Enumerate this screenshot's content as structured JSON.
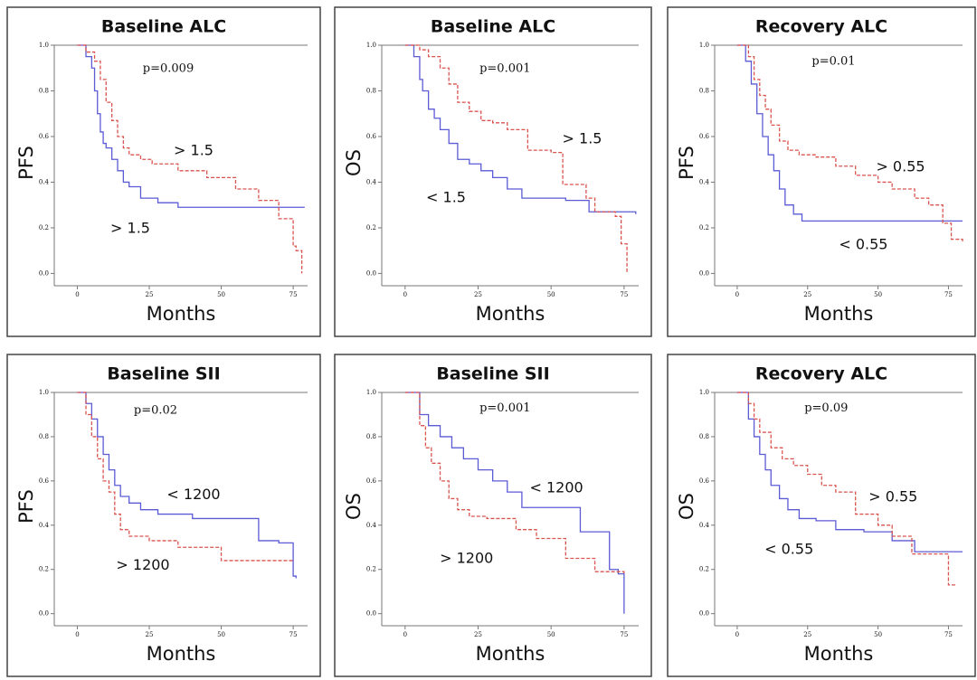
{
  "chart_data": [
    {
      "type": "line",
      "step": true,
      "title": "Baseline ALC",
      "ylabel": "PFS",
      "xlabel": "Months",
      "xlim": [
        -8,
        80
      ],
      "xticks": [
        0,
        25,
        50,
        75
      ],
      "ylim": [
        -0.03,
        1.0
      ],
      "yticks": [
        {
          "value": 0,
          "label": "0.0"
        },
        {
          "value": 0.2,
          "label": "0.2"
        },
        {
          "value": 0.4,
          "label": "0.4"
        },
        {
          "value": 0.6,
          "label": "0.6"
        },
        {
          "value": 0.8,
          "label": "0.8"
        },
        {
          "value": 1,
          "label": "1.0"
        }
      ],
      "annotations": [
        "p=0.009",
        "> 1.5",
        "> 1.5"
      ],
      "series": [
        {
          "color": "#5b5bd6",
          "dash": false,
          "x": [
            0,
            3,
            5,
            6,
            7,
            8,
            9,
            10,
            12,
            14,
            16,
            18,
            22,
            28,
            35,
            50,
            62,
            79
          ],
          "y": [
            1.0,
            0.95,
            0.9,
            0.8,
            0.7,
            0.62,
            0.57,
            0.55,
            0.5,
            0.45,
            0.4,
            0.38,
            0.33,
            0.31,
            0.29,
            0.29,
            0.29,
            0.29
          ]
        },
        {
          "color": "#d9534f",
          "dash": true,
          "x": [
            0,
            3,
            6,
            8,
            10,
            12,
            14,
            16,
            18,
            22,
            26,
            30,
            35,
            45,
            55,
            63,
            70,
            75,
            76,
            78
          ],
          "y": [
            1.0,
            0.97,
            0.93,
            0.85,
            0.75,
            0.67,
            0.6,
            0.55,
            0.52,
            0.5,
            0.48,
            0.48,
            0.45,
            0.42,
            0.37,
            0.32,
            0.24,
            0.12,
            0.1,
            0.0
          ]
        }
      ]
    },
    {
      "type": "line",
      "step": true,
      "title": "Baseline ALC",
      "ylabel": "OS",
      "xlabel": "Months",
      "xlim": [
        -8,
        80
      ],
      "xticks": [
        0,
        25,
        50,
        75
      ],
      "ylim": [
        -0.03,
        1.0
      ],
      "yticks": [
        {
          "value": 0,
          "label": "0.0"
        },
        {
          "value": 0.2,
          "label": "0.2"
        },
        {
          "value": 0.4,
          "label": "0.4"
        },
        {
          "value": 0.6,
          "label": "0.6"
        },
        {
          "value": 0.8,
          "label": "0.8"
        },
        {
          "value": 1,
          "label": "1.0"
        }
      ],
      "annotations": [
        "p=0.001",
        "> 1.5",
        "< 1.5"
      ],
      "series": [
        {
          "color": "#5b5bd6",
          "dash": false,
          "x": [
            0,
            3,
            5,
            6,
            8,
            10,
            12,
            15,
            18,
            22,
            26,
            30,
            35,
            40,
            48,
            55,
            63,
            79
          ],
          "y": [
            1.0,
            0.95,
            0.85,
            0.8,
            0.72,
            0.68,
            0.63,
            0.57,
            0.5,
            0.48,
            0.45,
            0.42,
            0.37,
            0.33,
            0.33,
            0.32,
            0.27,
            0.26
          ]
        },
        {
          "color": "#d9534f",
          "dash": true,
          "x": [
            0,
            5,
            8,
            12,
            15,
            18,
            22,
            26,
            30,
            35,
            42,
            50,
            54,
            62,
            65,
            72,
            74,
            76
          ],
          "y": [
            1.0,
            0.98,
            0.95,
            0.9,
            0.83,
            0.75,
            0.71,
            0.67,
            0.66,
            0.63,
            0.54,
            0.53,
            0.39,
            0.33,
            0.27,
            0.25,
            0.13,
            0.0
          ]
        }
      ]
    },
    {
      "type": "line",
      "step": true,
      "title": "Recovery ALC",
      "ylabel": "PFS",
      "xlabel": "Months",
      "xlim": [
        -8,
        80
      ],
      "xticks": [
        0,
        25,
        50,
        75
      ],
      "ylim": [
        -0.03,
        1.0
      ],
      "yticks": [
        {
          "value": 0,
          "label": "0.0"
        },
        {
          "value": 0.2,
          "label": "0.2"
        },
        {
          "value": 0.4,
          "label": "0.4"
        },
        {
          "value": 0.6,
          "label": "0.6"
        },
        {
          "value": 0.8,
          "label": "0.8"
        },
        {
          "value": 1,
          "label": "1.0"
        }
      ],
      "annotations": [
        "p=0.01",
        "> 0.55",
        "< 0.55"
      ],
      "series": [
        {
          "color": "#5b5bd6",
          "dash": false,
          "x": [
            0,
            3,
            5,
            7,
            9,
            11,
            13,
            15,
            17,
            20,
            23,
            80
          ],
          "y": [
            1.0,
            0.93,
            0.83,
            0.7,
            0.6,
            0.52,
            0.45,
            0.37,
            0.3,
            0.26,
            0.23,
            0.23
          ]
        },
        {
          "color": "#d9534f",
          "dash": true,
          "x": [
            0,
            4,
            6,
            8,
            10,
            12,
            15,
            18,
            22,
            28,
            35,
            42,
            50,
            55,
            63,
            68,
            73,
            76,
            80
          ],
          "y": [
            1.0,
            0.95,
            0.85,
            0.78,
            0.72,
            0.65,
            0.58,
            0.54,
            0.52,
            0.51,
            0.47,
            0.43,
            0.4,
            0.37,
            0.33,
            0.3,
            0.22,
            0.15,
            0.14
          ]
        }
      ]
    },
    {
      "type": "line",
      "step": true,
      "title": "Baseline SII",
      "ylabel": "PFS",
      "xlabel": "Months",
      "xlim": [
        -8,
        80
      ],
      "xticks": [
        0,
        25,
        50,
        75
      ],
      "ylim": [
        -0.03,
        1.0
      ],
      "yticks": [
        {
          "value": 0,
          "label": "0.0"
        },
        {
          "value": 0.2,
          "label": "0.2"
        },
        {
          "value": 0.4,
          "label": "0.4"
        },
        {
          "value": 0.6,
          "label": "0.6"
        },
        {
          "value": 0.8,
          "label": "0.8"
        },
        {
          "value": 1,
          "label": "1.0"
        }
      ],
      "annotations": [
        "p=0.02",
        "< 1200",
        "> 1200"
      ],
      "series": [
        {
          "color": "#5b5bd6",
          "dash": false,
          "x": [
            0,
            3,
            5,
            7,
            9,
            11,
            13,
            15,
            18,
            22,
            28,
            40,
            63,
            70,
            75,
            76
          ],
          "y": [
            1.0,
            0.95,
            0.88,
            0.8,
            0.72,
            0.65,
            0.58,
            0.53,
            0.5,
            0.47,
            0.45,
            0.43,
            0.33,
            0.32,
            0.17,
            0.16
          ]
        },
        {
          "color": "#d9534f",
          "dash": true,
          "x": [
            0,
            3,
            5,
            7,
            9,
            11,
            13,
            15,
            18,
            25,
            35,
            50,
            75
          ],
          "y": [
            1.0,
            0.9,
            0.8,
            0.7,
            0.6,
            0.55,
            0.45,
            0.38,
            0.35,
            0.33,
            0.3,
            0.24,
            0.24
          ]
        }
      ]
    },
    {
      "type": "line",
      "step": true,
      "title": "Baseline SII",
      "ylabel": "OS",
      "xlabel": "Months",
      "xlim": [
        -8,
        80
      ],
      "xticks": [
        0,
        25,
        50,
        75
      ],
      "ylim": [
        -0.03,
        1.0
      ],
      "yticks": [
        {
          "value": 0,
          "label": "0.0"
        },
        {
          "value": 0.2,
          "label": "0.2"
        },
        {
          "value": 0.4,
          "label": "0.4"
        },
        {
          "value": 0.6,
          "label": "0.6"
        },
        {
          "value": 0.8,
          "label": "0.8"
        },
        {
          "value": 1,
          "label": "1.0"
        }
      ],
      "annotations": [
        "p=0.001",
        "< 1200",
        "> 1200"
      ],
      "series": [
        {
          "color": "#5b5bd6",
          "dash": false,
          "x": [
            0,
            5,
            8,
            12,
            16,
            20,
            25,
            30,
            35,
            40,
            45,
            60,
            70,
            73,
            75
          ],
          "y": [
            1.0,
            0.9,
            0.85,
            0.8,
            0.75,
            0.7,
            0.65,
            0.6,
            0.55,
            0.48,
            0.48,
            0.37,
            0.2,
            0.18,
            0.0
          ]
        },
        {
          "color": "#d9534f",
          "dash": true,
          "x": [
            0,
            5,
            7,
            9,
            12,
            15,
            18,
            22,
            28,
            38,
            45,
            55,
            65,
            75
          ],
          "y": [
            1.0,
            0.85,
            0.75,
            0.68,
            0.6,
            0.52,
            0.47,
            0.44,
            0.43,
            0.38,
            0.34,
            0.25,
            0.19,
            0.18
          ]
        }
      ]
    },
    {
      "type": "line",
      "step": true,
      "title": "Recovery ALC",
      "ylabel": "OS",
      "xlabel": "Months",
      "xlim": [
        -8,
        80
      ],
      "xticks": [
        0,
        25,
        50,
        75
      ],
      "ylim": [
        -0.03,
        1.0
      ],
      "yticks": [
        {
          "value": 0,
          "label": "0.0"
        },
        {
          "value": 0.2,
          "label": "0.2"
        },
        {
          "value": 0.4,
          "label": "0.4"
        },
        {
          "value": 0.6,
          "label": "0.6"
        },
        {
          "value": 0.8,
          "label": "0.8"
        },
        {
          "value": 1,
          "label": "1.0"
        }
      ],
      "annotations": [
        "p=0.09",
        "> 0.55",
        "< 0.55"
      ],
      "series": [
        {
          "color": "#5b5bd6",
          "dash": false,
          "x": [
            0,
            4,
            6,
            8,
            10,
            12,
            15,
            18,
            22,
            28,
            35,
            45,
            55,
            63,
            80
          ],
          "y": [
            1.0,
            0.88,
            0.8,
            0.72,
            0.65,
            0.58,
            0.52,
            0.47,
            0.43,
            0.42,
            0.38,
            0.37,
            0.33,
            0.28,
            0.28
          ]
        },
        {
          "color": "#d9534f",
          "dash": true,
          "x": [
            0,
            4,
            6,
            8,
            12,
            16,
            20,
            25,
            30,
            35,
            42,
            50,
            55,
            62,
            75,
            78
          ],
          "y": [
            1.0,
            0.95,
            0.88,
            0.82,
            0.75,
            0.7,
            0.67,
            0.63,
            0.58,
            0.55,
            0.45,
            0.4,
            0.35,
            0.27,
            0.13,
            0.13
          ]
        }
      ]
    }
  ]
}
